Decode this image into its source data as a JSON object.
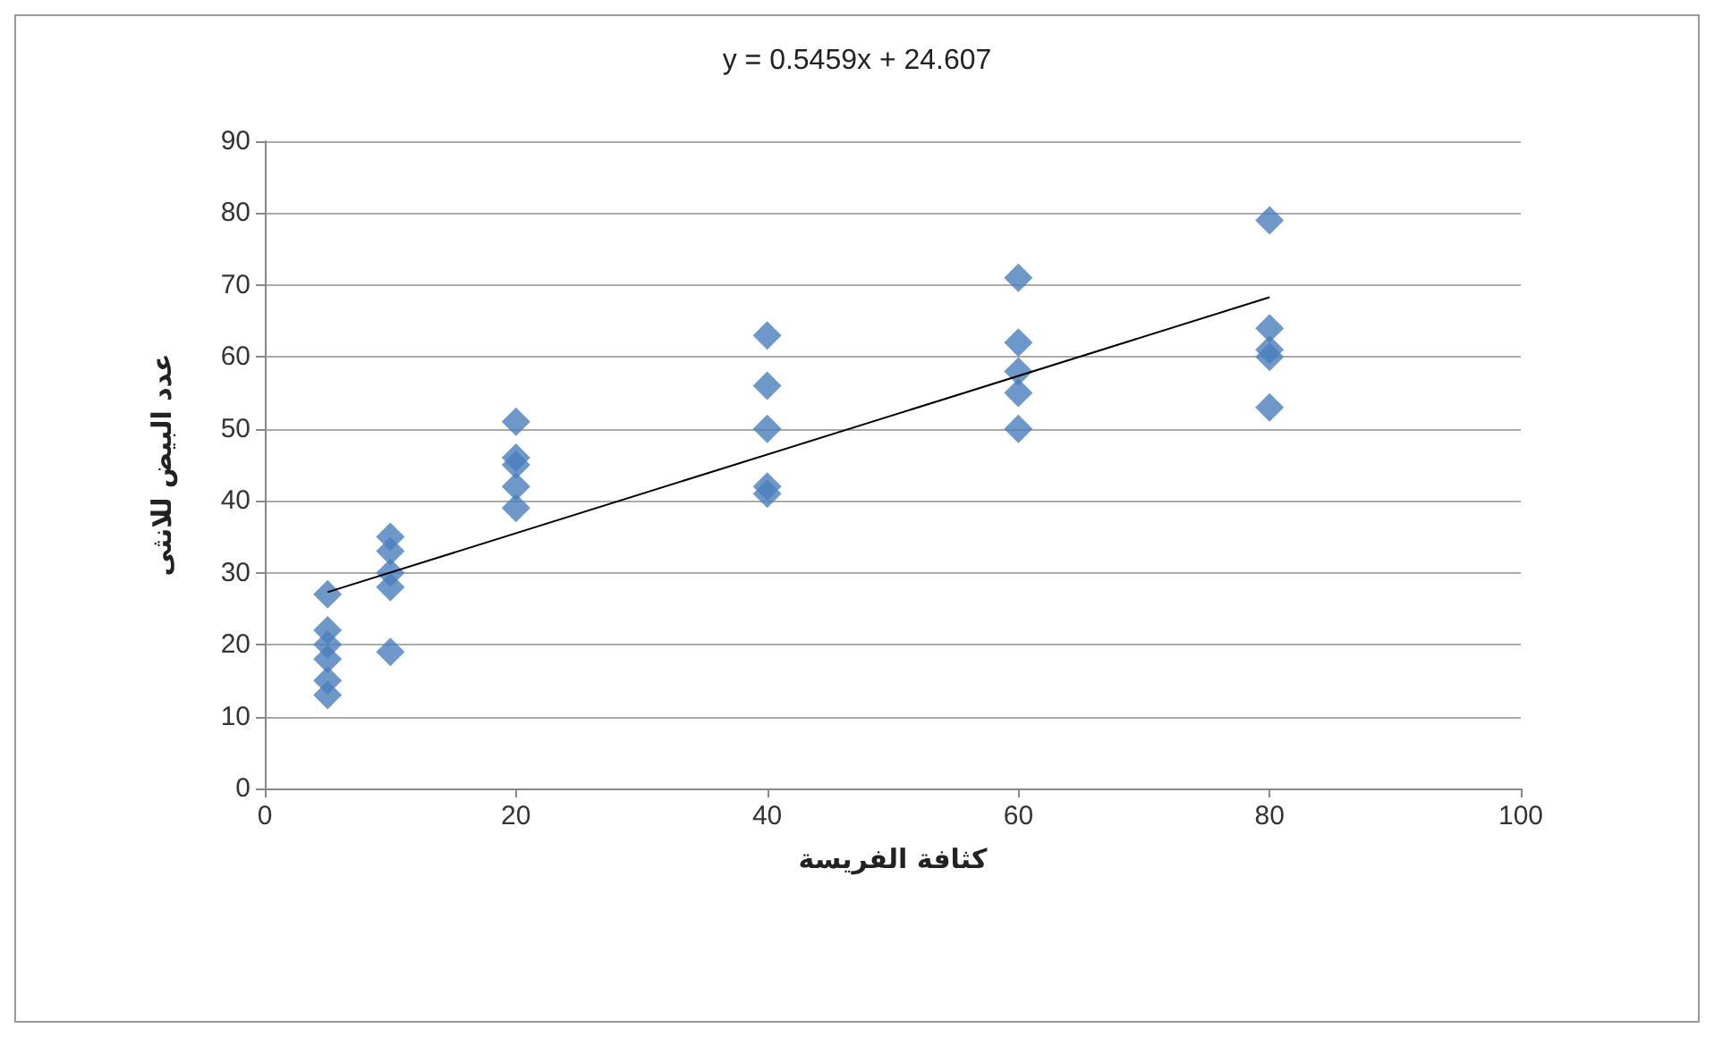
{
  "chart_data": {
    "type": "scatter",
    "title": "y = 0.5459x + 24.607",
    "xlabel": "كثافة الفريسة",
    "ylabel": "عدد البيض للانثى",
    "xlim": [
      0,
      100
    ],
    "xticks": [
      0,
      20,
      40,
      60,
      80,
      100
    ],
    "ylim": [
      0,
      90
    ],
    "yticks": [
      0,
      10,
      20,
      30,
      40,
      50,
      60,
      70,
      80,
      90
    ],
    "grid": "y",
    "marker": "diamond",
    "series": [
      {
        "color": "#4a7ebb",
        "x": [
          5,
          5,
          5,
          5,
          5,
          5,
          10,
          10,
          10,
          10,
          10,
          20,
          20,
          20,
          20,
          20,
          40,
          40,
          40,
          40,
          40,
          60,
          60,
          60,
          60,
          60,
          80,
          80,
          80,
          80,
          80
        ],
        "values": [
          27,
          22,
          20,
          18,
          15,
          13,
          35,
          33,
          30,
          28,
          19,
          51,
          46,
          45,
          42,
          39,
          63,
          56,
          50,
          42,
          41,
          71,
          62,
          58,
          55,
          50,
          79,
          64,
          61,
          60,
          53
        ]
      },
      {
        "type": "line",
        "color": "#000000",
        "marker": "none",
        "x": [
          5,
          80
        ],
        "values": [
          27.3,
          68.3
        ]
      }
    ]
  }
}
